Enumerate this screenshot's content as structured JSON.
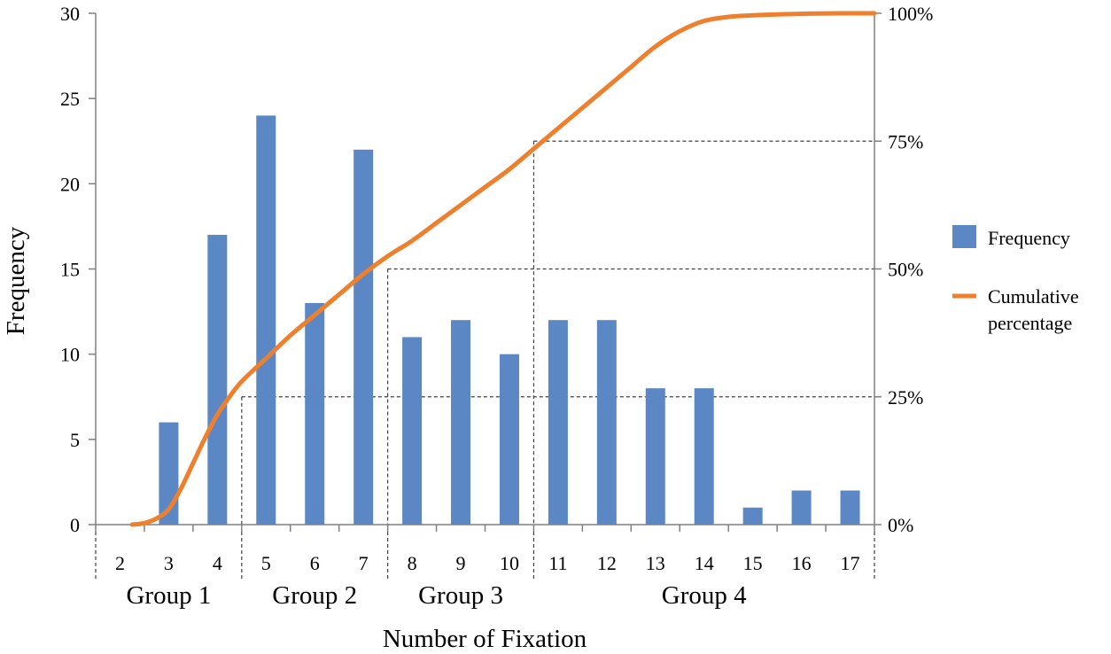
{
  "chart_data": {
    "type": "bar",
    "xlabel": "Number of  Fixation",
    "ylabel": "Frequency",
    "categories": [
      "2",
      "3",
      "4",
      "5",
      "6",
      "7",
      "8",
      "9",
      "10",
      "11",
      "12",
      "13",
      "14",
      "15",
      "16",
      "17"
    ],
    "series": [
      {
        "name": "Frequency",
        "type": "bar",
        "axis": "left",
        "color": "#5B87C5",
        "values": [
          0,
          6,
          17,
          24,
          13,
          22,
          11,
          12,
          10,
          12,
          12,
          8,
          8,
          1,
          2,
          2
        ]
      },
      {
        "name": "Cumulative percentage",
        "type": "line",
        "axis": "right",
        "color": "#EE7F2D",
        "unit": "%",
        "points": [
          [
            2.25,
            0
          ],
          [
            2.5,
            0.3
          ],
          [
            2.75,
            1.2
          ],
          [
            3,
            3
          ],
          [
            3.25,
            7
          ],
          [
            3.5,
            12
          ],
          [
            3.75,
            17
          ],
          [
            4,
            21.5
          ],
          [
            4.25,
            25
          ],
          [
            4.5,
            28
          ],
          [
            5,
            32.5
          ],
          [
            5.5,
            37
          ],
          [
            6,
            41
          ],
          [
            6.5,
            45
          ],
          [
            7,
            49
          ],
          [
            7.5,
            52.5
          ],
          [
            8,
            55.5
          ],
          [
            8.5,
            59
          ],
          [
            9,
            62.5
          ],
          [
            9.5,
            66
          ],
          [
            10,
            69.5
          ],
          [
            10.5,
            73.5
          ],
          [
            11,
            77.5
          ],
          [
            11.5,
            81.5
          ],
          [
            12,
            85.5
          ],
          [
            12.5,
            89.5
          ],
          [
            13,
            93.5
          ],
          [
            13.5,
            96.5
          ],
          [
            14,
            98.5
          ],
          [
            14.5,
            99.3
          ],
          [
            15,
            99.6
          ],
          [
            16,
            99.9
          ],
          [
            17,
            100
          ],
          [
            17.5,
            100
          ]
        ]
      }
    ],
    "y_left": {
      "ylim": [
        0,
        30
      ],
      "ticks": [
        0,
        5,
        10,
        15,
        20,
        25,
        30
      ],
      "tick_labels": [
        "0",
        "5",
        "10",
        "15",
        "20",
        "25",
        "30"
      ]
    },
    "y_right": {
      "ylim": [
        0,
        100
      ],
      "ticks": [
        0,
        25,
        50,
        75,
        100
      ],
      "tick_labels": [
        "0%",
        "25%",
        "50%",
        "75%",
        "100%"
      ]
    },
    "reference_lines": [
      {
        "x": 4.5,
        "y_percent": 25
      },
      {
        "x": 7.5,
        "y_percent": 50
      },
      {
        "x": 10.5,
        "y_percent": 75
      }
    ],
    "groups": [
      {
        "label": "Group 1",
        "from": 1.5,
        "to": 4.5
      },
      {
        "label": "Group 2",
        "from": 4.5,
        "to": 7.5
      },
      {
        "label": "Group 3",
        "from": 7.5,
        "to": 10.5
      },
      {
        "label": "Group 4",
        "from": 10.5,
        "to": 17.5
      }
    ],
    "legend": {
      "position": "right",
      "entries": [
        {
          "label": "Frequency",
          "marker": "box",
          "color": "#5B87C5"
        },
        {
          "label_lines": [
            "Cumulative",
            "percentage"
          ],
          "marker": "line",
          "color": "#EE7F2D"
        }
      ]
    },
    "grid": false,
    "colors": {
      "axis": "#808080",
      "reference_line": "#404040"
    }
  }
}
